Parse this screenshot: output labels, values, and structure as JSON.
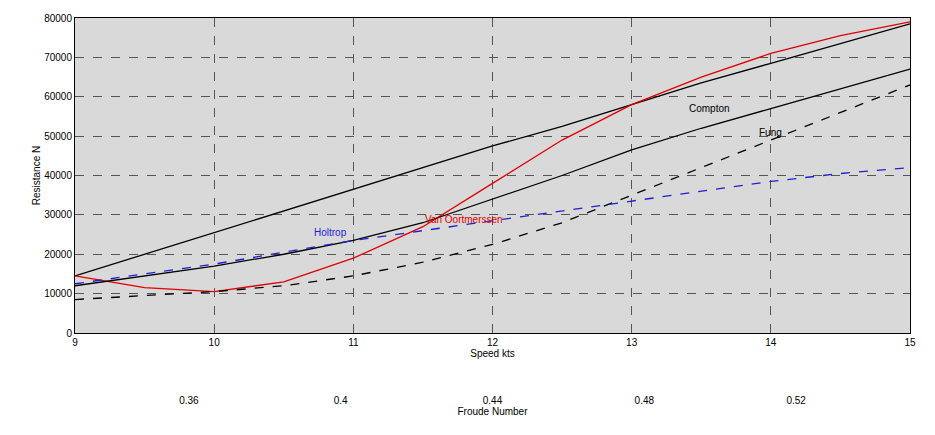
{
  "chart_data": {
    "type": "line",
    "x_label": "Speed kts",
    "x2_label": "Froude Number",
    "y_label": "Resistance N",
    "x": [
      9,
      9.5,
      10,
      10.5,
      11,
      11.5,
      12,
      12.5,
      13,
      13.5,
      14,
      14.5,
      15
    ],
    "series": [
      {
        "color": "#000000",
        "line_style": "solid",
        "values": [
          14500,
          20000,
          25500,
          31000,
          36500,
          42000,
          47500,
          52500,
          58000,
          63500,
          68500,
          73500,
          78500
        ]
      },
      {
        "name": "Van Oortmerssen",
        "color": "#e00000",
        "line_style": "solid",
        "values": [
          14500,
          11500,
          10500,
          13000,
          19000,
          27000,
          38000,
          49000,
          58000,
          65000,
          71000,
          75500,
          79000
        ]
      },
      {
        "name": "Compton",
        "color": "#000000",
        "line_style": "solid",
        "values": [
          12000,
          14500,
          17000,
          20000,
          23500,
          28000,
          34000,
          40000,
          46500,
          52000,
          57000,
          62000,
          67000
        ]
      },
      {
        "name": "Fung",
        "color": "#000000",
        "line_style": "dash",
        "values": [
          8500,
          9500,
          10500,
          12000,
          14500,
          18000,
          22500,
          28000,
          35000,
          42000,
          49000,
          56000,
          63000
        ]
      },
      {
        "name": "Holtrop",
        "color": "#1f1fd0",
        "line_style": "dash",
        "values": [
          12500,
          15000,
          17500,
          20500,
          23500,
          26000,
          28500,
          31000,
          33500,
          36000,
          38500,
          40500,
          42000
        ]
      }
    ],
    "annotations": [
      {
        "text": "Van Oortmerssen",
        "x": 11.5,
        "y": 27000,
        "color": "#e00000"
      },
      {
        "text": "Holtrop",
        "x": 10.7,
        "y": 23500,
        "color": "#1f1fd0"
      },
      {
        "text": "Compton",
        "x": 13.4,
        "y": 55000,
        "color": "#000000"
      },
      {
        "text": "Fung",
        "x": 13.9,
        "y": 49000,
        "color": "#000000"
      }
    ],
    "xlim": [
      9,
      15
    ],
    "xticks": [
      9,
      10,
      11,
      12,
      13,
      14,
      15
    ],
    "x2lim": [
      0.33,
      0.55
    ],
    "x2ticks": [
      0.36,
      0.4,
      0.44,
      0.48,
      0.52
    ],
    "ylim": [
      0,
      80000
    ],
    "yticks": [
      0,
      10000,
      20000,
      30000,
      40000,
      50000,
      60000,
      70000,
      80000
    ],
    "grid": true
  }
}
